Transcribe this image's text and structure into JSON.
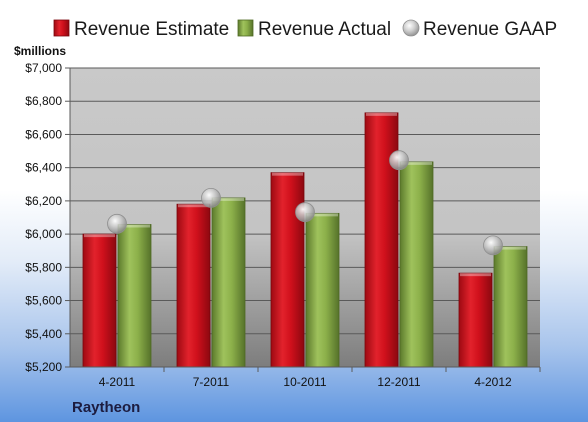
{
  "chart_data": {
    "type": "bar",
    "unit_label": "$millions",
    "company": "Raytheon",
    "categories": [
      "4-2011",
      "7-2011",
      "10-2011",
      "12-2011",
      "4-2012"
    ],
    "series": [
      {
        "name": "Revenue Estimate",
        "kind": "bar",
        "color": "#d0101c",
        "values": [
          6000,
          6180,
          6370,
          6730,
          5765
        ]
      },
      {
        "name": "Revenue Actual",
        "kind": "bar",
        "color": "#8cb04a",
        "values": [
          6058,
          6218,
          6125,
          6435,
          5925
        ]
      },
      {
        "name": "Revenue GAAP",
        "kind": "marker",
        "color": "#b8b8b8",
        "values": [
          6062,
          6218,
          6132,
          6445,
          5932
        ]
      }
    ],
    "yticks": [
      "$5,200",
      "$5,400",
      "$5,600",
      "$5,800",
      "$6,000",
      "$6,200",
      "$6,400",
      "$6,600",
      "$6,800",
      "$7,000"
    ],
    "ylim": [
      5200,
      7000
    ],
    "grid": true,
    "legend_position": "top"
  }
}
